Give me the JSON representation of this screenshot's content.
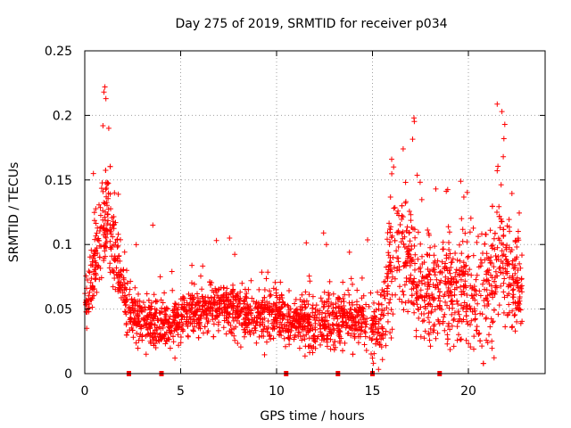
{
  "chart_data": {
    "type": "scatter",
    "title": "Day 275 of 2019, SRMTID for receiver p034",
    "xlabel": "GPS time / hours",
    "ylabel": "SRMTID / TECUs",
    "xlim": [
      0,
      24
    ],
    "ylim": [
      0,
      0.25
    ],
    "grid": true,
    "marker": "+",
    "marker_color": "#ff0000",
    "x_ticks": [
      0,
      5,
      10,
      15,
      20
    ],
    "x_tick_labels": [
      "0",
      "5",
      "10",
      "15",
      "20"
    ],
    "y_ticks": [
      0,
      0.05,
      0.1,
      0.15,
      0.2,
      0.25
    ],
    "y_tick_labels": [
      "0",
      "0.05",
      "0.1",
      "0.15",
      "0.2",
      "0.25"
    ],
    "series": [
      {
        "name": "SRMTID",
        "profile": [
          {
            "x": 0.0,
            "y": 0.055
          },
          {
            "x": 0.3,
            "y": 0.07
          },
          {
            "x": 0.6,
            "y": 0.09
          },
          {
            "x": 0.9,
            "y": 0.11
          },
          {
            "x": 1.2,
            "y": 0.12
          },
          {
            "x": 1.5,
            "y": 0.1
          },
          {
            "x": 1.8,
            "y": 0.075
          },
          {
            "x": 2.2,
            "y": 0.05
          },
          {
            "x": 3.0,
            "y": 0.042
          },
          {
            "x": 4.0,
            "y": 0.038
          },
          {
            "x": 5.0,
            "y": 0.042
          },
          {
            "x": 6.0,
            "y": 0.05
          },
          {
            "x": 7.0,
            "y": 0.052
          },
          {
            "x": 8.0,
            "y": 0.048
          },
          {
            "x": 9.0,
            "y": 0.045
          },
          {
            "x": 10.0,
            "y": 0.044
          },
          {
            "x": 11.0,
            "y": 0.04
          },
          {
            "x": 12.0,
            "y": 0.038
          },
          {
            "x": 13.0,
            "y": 0.042
          },
          {
            "x": 14.0,
            "y": 0.045
          },
          {
            "x": 15.0,
            "y": 0.035
          },
          {
            "x": 15.5,
            "y": 0.04
          },
          {
            "x": 16.0,
            "y": 0.085
          },
          {
            "x": 16.6,
            "y": 0.095
          },
          {
            "x": 17.2,
            "y": 0.075
          },
          {
            "x": 18.0,
            "y": 0.065
          },
          {
            "x": 19.0,
            "y": 0.06
          },
          {
            "x": 20.0,
            "y": 0.062
          },
          {
            "x": 21.0,
            "y": 0.065
          },
          {
            "x": 21.6,
            "y": 0.09
          },
          {
            "x": 22.2,
            "y": 0.075
          },
          {
            "x": 22.8,
            "y": 0.065
          }
        ],
        "spread_profile": [
          {
            "x": 0.0,
            "y": 0.012
          },
          {
            "x": 1.0,
            "y": 0.035
          },
          {
            "x": 2.0,
            "y": 0.02
          },
          {
            "x": 3.0,
            "y": 0.015
          },
          {
            "x": 8.0,
            "y": 0.017
          },
          {
            "x": 15.0,
            "y": 0.018
          },
          {
            "x": 16.0,
            "y": 0.045
          },
          {
            "x": 17.0,
            "y": 0.04
          },
          {
            "x": 19.0,
            "y": 0.035
          },
          {
            "x": 21.5,
            "y": 0.05
          },
          {
            "x": 22.8,
            "y": 0.03
          }
        ],
        "peaks": [
          {
            "x": 1.05,
            "y": 0.222
          },
          {
            "x": 1.0,
            "y": 0.218
          },
          {
            "x": 1.1,
            "y": 0.213
          },
          {
            "x": 1.25,
            "y": 0.19
          },
          {
            "x": 0.95,
            "y": 0.192
          },
          {
            "x": 0.45,
            "y": 0.155
          },
          {
            "x": 1.55,
            "y": 0.14
          },
          {
            "x": 16.6,
            "y": 0.174
          },
          {
            "x": 16.0,
            "y": 0.166
          },
          {
            "x": 16.1,
            "y": 0.16
          },
          {
            "x": 18.3,
            "y": 0.143
          },
          {
            "x": 19.6,
            "y": 0.149
          },
          {
            "x": 21.75,
            "y": 0.203
          },
          {
            "x": 21.9,
            "y": 0.193
          },
          {
            "x": 21.85,
            "y": 0.182
          },
          {
            "x": 12.45,
            "y": 0.109
          },
          {
            "x": 7.55,
            "y": 0.105
          },
          {
            "x": 3.55,
            "y": 0.115
          },
          {
            "x": 12.6,
            "y": 0.1
          },
          {
            "x": 13.8,
            "y": 0.094
          },
          {
            "x": 0.1,
            "y": 0.035
          },
          {
            "x": 15.05,
            "y": 0.008
          },
          {
            "x": 15.0,
            "y": 0.012
          },
          {
            "x": 4.7,
            "y": 0.012
          },
          {
            "x": 3.2,
            "y": 0.015
          }
        ],
        "point_count": 2600,
        "x_range": [
          0,
          22.8
        ]
      }
    ],
    "axis_markers": {
      "description": "short red ticks on the x-axis",
      "x": [
        2.3,
        4.0,
        10.5,
        13.2,
        15.0,
        18.5
      ]
    }
  }
}
